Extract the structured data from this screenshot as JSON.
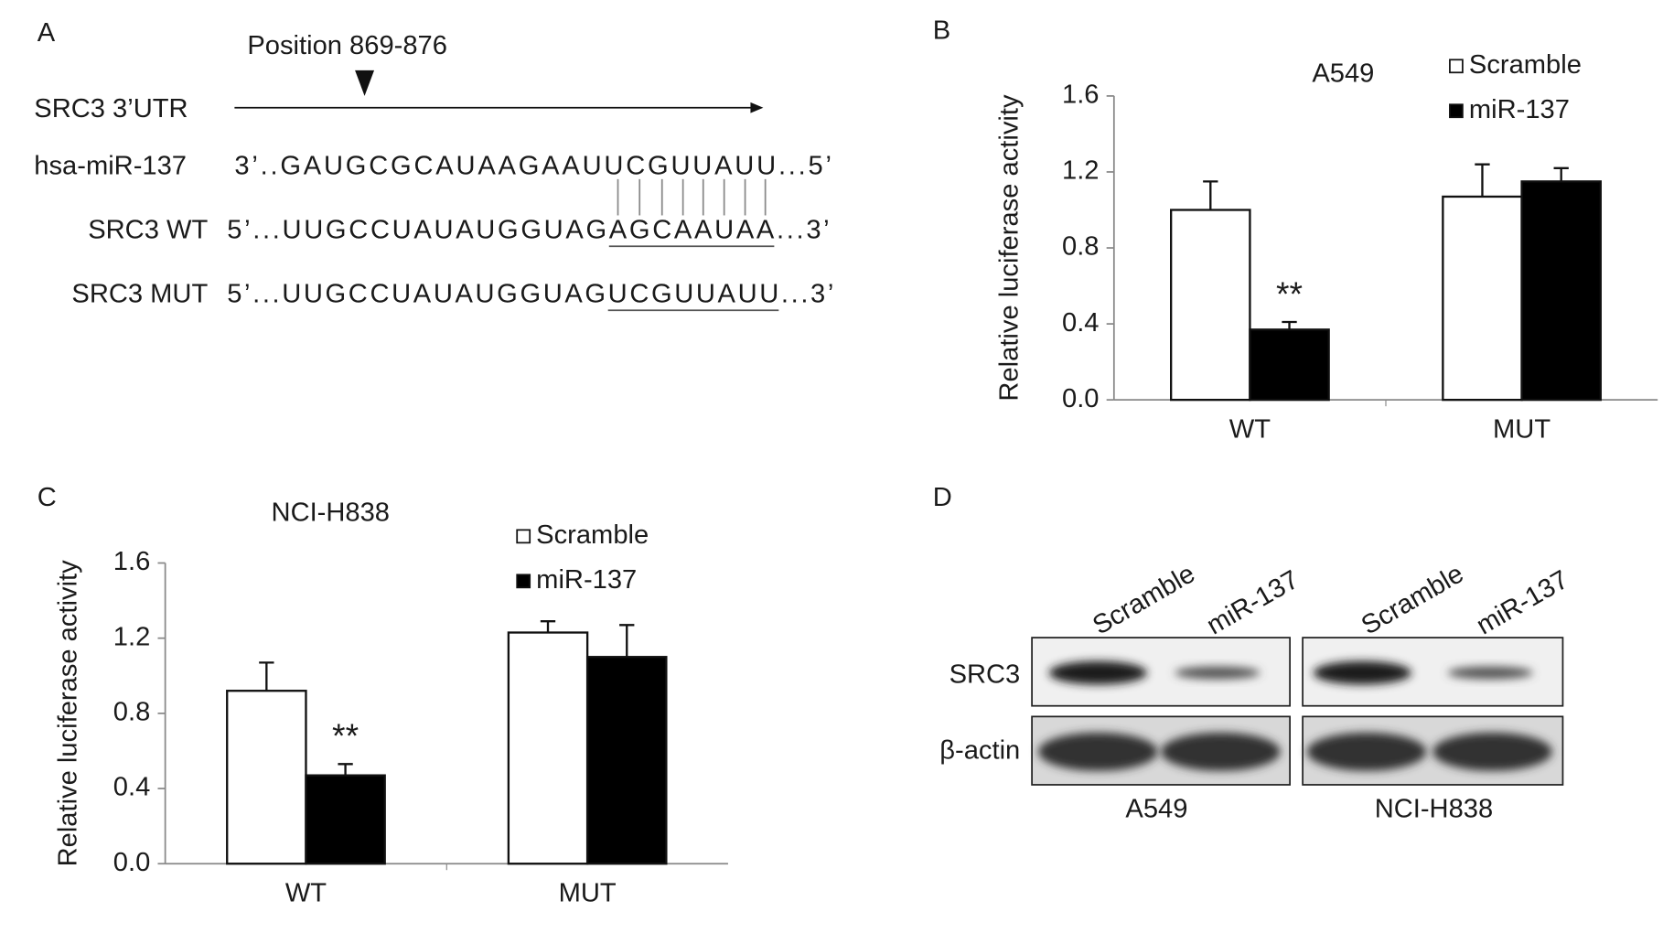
{
  "panels": [
    "A",
    "B",
    "C",
    "D"
  ],
  "sequence": {
    "position": "Position 869-876",
    "rows": [
      {
        "label": "SRC3 3’UTR"
      },
      {
        "label": "hsa-miR-137",
        "sequence": "3’..GAUGCGCAUAAGAAUUCGUUAUU...5’"
      },
      {
        "label": "SRC3 WT",
        "sequence": "5’...UUGCCUAUAUGGUAGAGCAAUAA...3’"
      },
      {
        "label": "SRC3 MUT",
        "sequence": "5’...UUGCCUAUAUGGUAGUCGUUAUU...3’"
      }
    ]
  },
  "chart_data": [
    {
      "type": "bar",
      "title": "A549",
      "y_label": "Relative luciferase activity",
      "categories": [
        "WT",
        "MUT"
      ],
      "series": [
        {
          "name": "Scramble",
          "color": "#ffffff",
          "values": [
            1.0,
            1.07
          ],
          "errors": [
            0.15,
            0.17
          ]
        },
        {
          "name": "miR-137",
          "color": "#000000",
          "values": [
            0.37,
            1.15
          ],
          "errors": [
            0.04,
            0.07
          ]
        }
      ],
      "annotation": "**",
      "ylim": [
        0,
        1.6
      ],
      "yticks": [
        {
          "value": 0,
          "label": "0.0"
        },
        {
          "value": 0.4,
          "label": "0.4"
        },
        {
          "value": 0.8,
          "label": "0.8"
        },
        {
          "value": 1.2,
          "label": "1.2"
        },
        {
          "value": 1.6,
          "label": "1.6"
        }
      ],
      "legend": "top-right",
      "grid": false
    },
    {
      "type": "bar",
      "title": "NCI-H838",
      "y_label": "Relative luciferase activity",
      "categories": [
        "WT",
        "MUT"
      ],
      "series": [
        {
          "name": "Scramble",
          "color": "#ffffff",
          "values": [
            0.92,
            1.23
          ],
          "errors": [
            0.15,
            0.06
          ]
        },
        {
          "name": "miR-137",
          "color": "#000000",
          "values": [
            0.47,
            1.1
          ],
          "errors": [
            0.06,
            0.17
          ]
        }
      ],
      "annotation": "**",
      "ylim": [
        0,
        1.6
      ],
      "yticks": [
        {
          "value": 0,
          "label": "0.0"
        },
        {
          "value": 0.4,
          "label": "0.4"
        },
        {
          "value": 0.8,
          "label": "0.8"
        },
        {
          "value": 1.2,
          "label": "1.2"
        },
        {
          "value": 1.6,
          "label": "1.6"
        }
      ],
      "legend": "top-right",
      "grid": false
    }
  ],
  "blot": {
    "lanes": [
      "Scramble",
      "miR-137",
      "Scramble",
      "miR-137"
    ],
    "proteins": [
      "SRC3",
      "β-actin"
    ],
    "cell_lines": [
      "A549",
      "NCI-H838"
    ]
  }
}
